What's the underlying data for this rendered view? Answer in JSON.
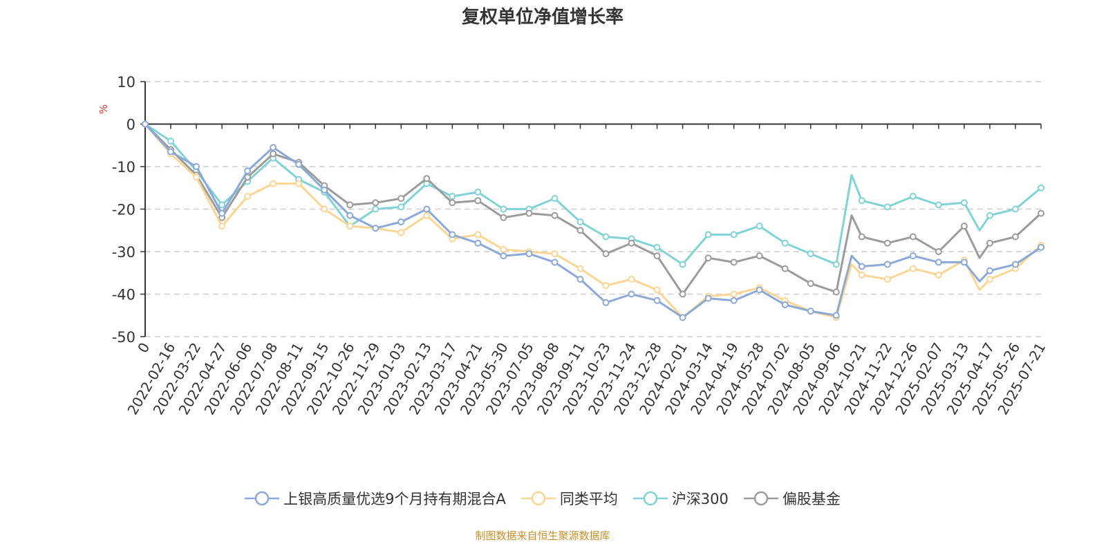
{
  "chart_data": {
    "type": "line",
    "title": "复权单位净值增长率",
    "ylabel": "%",
    "xlabel": "",
    "ylim": [
      -50,
      10
    ],
    "yticks": [
      10,
      0,
      -10,
      -20,
      -30,
      -40,
      -50
    ],
    "grid": true,
    "legend_position": "bottom",
    "categories": [
      "0",
      "2022-02-16",
      "2022-03-22",
      "2022-04-27",
      "2022-06-06",
      "2022-07-08",
      "2022-08-11",
      "2022-09-15",
      "2022-10-26",
      "2022-11-29",
      "2023-01-03",
      "2023-02-13",
      "2023-03-17",
      "2023-04-21",
      "2023-05-30",
      "2023-07-05",
      "2023-08-08",
      "2023-09-11",
      "2023-10-23",
      "2023-11-24",
      "2023-12-28",
      "2024-02-01",
      "2024-03-14",
      "2024-04-19",
      "2024-05-28",
      "2024-07-02",
      "2024-08-05",
      "2024-09-06",
      "2024-10-21",
      "2024-11-22",
      "2024-12-26",
      "2025-02-07",
      "2025-03-13",
      "2025-04-17",
      "2025-05-26",
      "2025-07-21"
    ],
    "x": [
      0,
      1,
      2,
      3,
      4,
      5,
      6,
      7,
      8,
      9,
      10,
      11,
      12,
      13,
      14,
      15,
      16,
      17,
      18,
      19,
      20,
      21,
      22,
      23,
      24,
      25,
      26,
      27,
      27.6,
      28,
      29,
      30,
      31,
      32,
      32.6,
      33,
      34,
      35
    ],
    "series": [
      {
        "name": "上银高质量优选9个月持有期混合A",
        "color": "#8aa8d8",
        "values": [
          0,
          -6.5,
          -10,
          -21,
          -11,
          -5.5,
          -9.5,
          -15.5,
          -21.5,
          -24.5,
          -23,
          -20,
          -26,
          -28,
          -31,
          -30.5,
          -32.5,
          -36.5,
          -42,
          -40,
          -41.5,
          -45.5,
          -41,
          -41.5,
          -39,
          -42.5,
          -44,
          -45,
          -31,
          -33.5,
          -33,
          -31,
          -32.5,
          -32.5,
          -37,
          -34.5,
          -33,
          -29
        ]
      },
      {
        "name": "同类平均",
        "color": "#fdd592",
        "values": [
          0,
          -7,
          -12.5,
          -24,
          -17,
          -14,
          -14,
          -20,
          -24,
          -24.5,
          -25.5,
          -21.5,
          -27,
          -26,
          -29.5,
          -30,
          -30.5,
          -34,
          -38,
          -36.5,
          -39,
          -45.5,
          -40.5,
          -40,
          -38.5,
          -41.5,
          -44,
          -45.5,
          -33,
          -35.5,
          -36.5,
          -34,
          -35.5,
          -32,
          -39,
          -36.5,
          -34,
          -28.5
        ]
      },
      {
        "name": "沪深300",
        "color": "#7fd3d6",
        "values": [
          0,
          -4,
          -11,
          -19,
          -13.5,
          -8,
          -13,
          -16,
          -24,
          -20,
          -19.5,
          -14,
          -17,
          -16,
          -20,
          -20,
          -17.5,
          -23,
          -26.5,
          -27,
          -29,
          -33,
          -26,
          -26,
          -24,
          -28,
          -30.5,
          -33,
          -12,
          -18,
          -19.5,
          -17,
          -19,
          -18.5,
          -25,
          -21.5,
          -20,
          -15
        ]
      },
      {
        "name": "偏股基金",
        "color": "#9b9b9b",
        "values": [
          0,
          -6,
          -12,
          -22,
          -12.5,
          -7,
          -9,
          -14.5,
          -19,
          -18.5,
          -17.5,
          -12.8,
          -18.5,
          -18,
          -22,
          -21,
          -21.5,
          -25,
          -30.5,
          -28,
          -31,
          -40,
          -31.5,
          -32.5,
          -31,
          -34,
          -37.5,
          -39.5,
          -21.5,
          -26.5,
          -28,
          -26.5,
          -30,
          -24,
          -31.5,
          -28,
          -26.5,
          -21
        ]
      }
    ]
  },
  "source": "制图数据来自恒生聚源数据库"
}
